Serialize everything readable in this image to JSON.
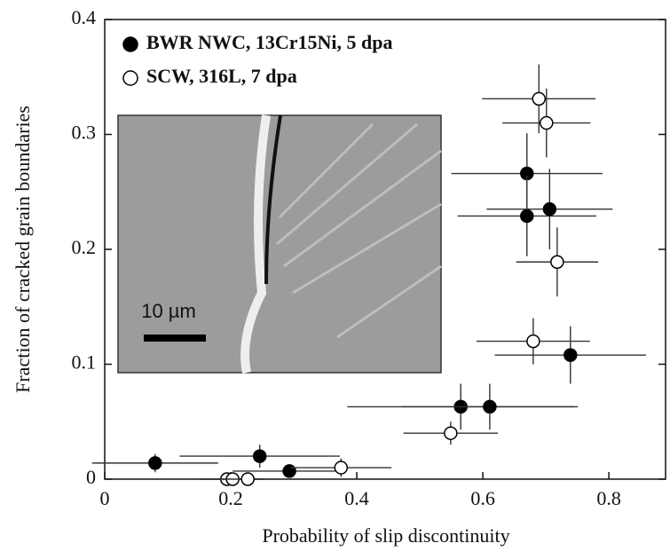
{
  "chart_data": {
    "type": "scatter",
    "xlabel": "Probability of slip discontinuity",
    "ylabel": "Fraction of cracked grain boundaries",
    "xlim": [
      0,
      0.89
    ],
    "ylim": [
      0,
      0.4
    ],
    "xticks": [
      0,
      0.2,
      0.4,
      0.6,
      0.8
    ],
    "yticks": [
      0,
      0.1,
      0.2,
      0.3,
      0.4
    ],
    "legend": "upper left",
    "inset_label": "10 µm",
    "series": [
      {
        "name": "BWR NWC, 13Cr15Ni, 5 dpa",
        "color": "#000000",
        "filled": true,
        "x": [
          0.08,
          0.246,
          0.293,
          0.565,
          0.611,
          0.67,
          0.67,
          0.706,
          0.739
        ],
        "values": [
          0.014,
          0.02,
          0.007,
          0.063,
          0.063,
          0.266,
          0.229,
          0.235,
          0.108
        ],
        "xerr": [
          0.1,
          0.127,
          0.09,
          0.18,
          0.14,
          0.12,
          0.11,
          0.1,
          0.12
        ],
        "yerr": [
          0.008,
          0.01,
          0.005,
          0.02,
          0.02,
          0.035,
          0.035,
          0.035,
          0.025
        ]
      },
      {
        "name": "SCW, 316L, 7 dpa",
        "color": "#000000",
        "filled": false,
        "x": [
          0.194,
          0.203,
          0.227,
          0.375,
          0.549,
          0.68,
          0.689,
          0.701,
          0.718
        ],
        "values": [
          0,
          0,
          0,
          0.01,
          0.04,
          0.12,
          0.331,
          0.31,
          0.189
        ],
        "xerr": [
          0.05,
          0.05,
          0.05,
          0.08,
          0.075,
          0.09,
          0.09,
          0.07,
          0.065
        ],
        "yerr": [
          0,
          0,
          0,
          0.008,
          0.01,
          0.02,
          0.03,
          0.03,
          0.03
        ]
      }
    ]
  }
}
